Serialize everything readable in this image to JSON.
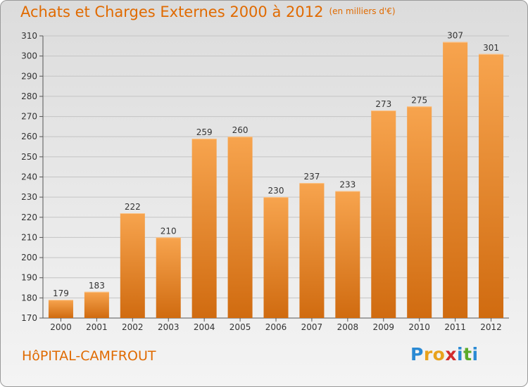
{
  "chart_data": {
    "type": "bar",
    "title": "Achats et Charges Externes 2000 à 2012",
    "subtitle": "(en milliers d'€)",
    "categories": [
      "2000",
      "2001",
      "2002",
      "2003",
      "2004",
      "2005",
      "2006",
      "2007",
      "2008",
      "2009",
      "2010",
      "2011",
      "2012"
    ],
    "values": [
      179,
      183,
      222,
      210,
      259,
      260,
      230,
      237,
      233,
      273,
      275,
      307,
      301
    ],
    "ylim": [
      170,
      310
    ],
    "yticks": [
      170,
      180,
      190,
      200,
      210,
      220,
      230,
      240,
      250,
      260,
      270,
      280,
      290,
      300,
      310
    ],
    "grid": true,
    "bar_color_top": "#f7a44e",
    "bar_color_bottom": "#d06b10"
  },
  "commune": "HôPITAL-CAMFROUT",
  "logo": {
    "letters": [
      "P",
      "r",
      "o",
      "x",
      "i",
      "t",
      "i"
    ],
    "colors": [
      "#2a8ad4",
      "#e8a21c",
      "#e8a21c",
      "#d22c2c",
      "#2a8ad4",
      "#5aaa2a",
      "#2a8ad4"
    ]
  }
}
